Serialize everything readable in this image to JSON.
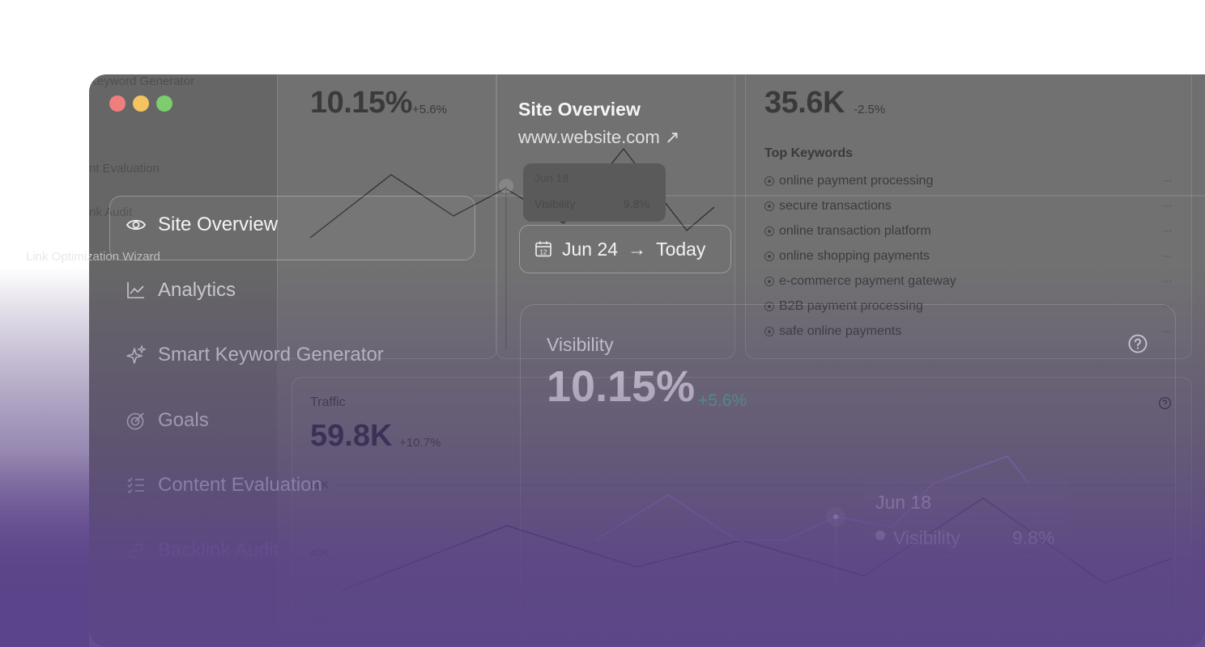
{
  "window": {
    "traffic_lights": [
      "#ef7f7d",
      "#f3c45f",
      "#7dcc6e"
    ]
  },
  "sidebar_faint": {
    "top": "Keyword Generator",
    "item1": "nt Evaluation",
    "item2": "nk Audit",
    "item3": "Link Optimization Wizard"
  },
  "nav": {
    "items": [
      {
        "label": "Site Overview",
        "icon": "eye-icon"
      },
      {
        "label": "Analytics",
        "icon": "chart-line-icon"
      },
      {
        "label": "Smart Keyword Generator",
        "icon": "sparkle-icon"
      },
      {
        "label": "Goals",
        "icon": "target-icon"
      },
      {
        "label": "Content Evaluation",
        "icon": "checklist-icon"
      },
      {
        "label": "Backlink Audit",
        "icon": "link-icon"
      }
    ]
  },
  "header": {
    "title": "Site Overview",
    "url": "www.website.com",
    "url_arrow": "↗",
    "date_from": "Jun 24",
    "arrow": "→",
    "date_to": "Today",
    "calendar_day": "12"
  },
  "bg_visibility": {
    "value": "10.15%",
    "change": "+5.6%",
    "tooltip_date": "Jun 18",
    "tooltip_label": "Visibility",
    "tooltip_value": "9.8%"
  },
  "bg_keywords": {
    "value": "35.6K",
    "change": "-2.5%",
    "heading": "Top Keywords",
    "list": [
      "online payment processing",
      "secure transactions",
      "online transaction platform",
      "online shopping payments",
      "e-commerce payment gateway",
      "B2B payment processing",
      "safe online payments"
    ],
    "more": "···"
  },
  "traffic": {
    "label": "Traffic",
    "value": "59.8K",
    "change": "+10.7%",
    "ticks": [
      "60K",
      "40K",
      "20K"
    ]
  },
  "visibility_card": {
    "label": "Visibility",
    "value": "10.15%",
    "change": "+5.6%",
    "change_color": "#4fae8d",
    "tooltip_date": "Jun 18",
    "tooltip_label": "Visibility",
    "tooltip_value": "9.8%"
  }
}
